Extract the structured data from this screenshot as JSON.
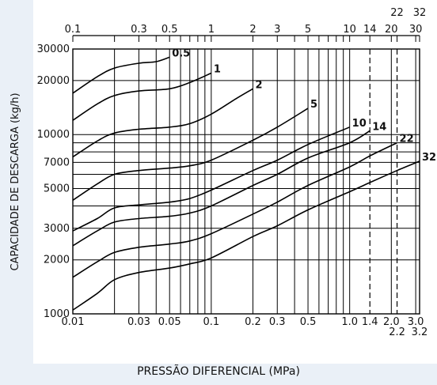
{
  "chart_data": {
    "type": "line",
    "xlabel": "PRESSÃO DIFERENCIAL (MPa)",
    "ylabel": "CAPACIDADE DE DESCARGA (kg/h)",
    "x_scale": "log",
    "y_scale": "log",
    "xlim_bottom": [
      0.01,
      3.2
    ],
    "ylim": [
      1000,
      30000
    ],
    "xlim_top": [
      0.1,
      32
    ],
    "y_ticks": [
      "1000",
      "2000",
      "3000",
      "5000",
      "7000",
      "10000",
      "20000",
      "30000"
    ],
    "x_ticks_bottom": [
      "0.01",
      "0.03",
      "0.05",
      "0.1",
      "0.2",
      "0.3",
      "0.5",
      "1.0",
      "1.4",
      "2.0",
      "3.0"
    ],
    "x_ticks_bottom_second_row": [
      "2.2",
      "3.2"
    ],
    "x_ticks_top": [
      "0.1",
      "0.3",
      "0.5",
      "1",
      "2",
      "3",
      "5",
      "10",
      "14",
      "20",
      "30"
    ],
    "x_ticks_top_second_row": [
      "22",
      "32"
    ],
    "dashed_vertical_lines": [
      1.4,
      2.2
    ],
    "grid": true,
    "series": [
      {
        "name": "0.5",
        "end_x": 0.05,
        "points": [
          [
            0.01,
            17000
          ],
          [
            0.015,
            21000
          ],
          [
            0.02,
            23500
          ],
          [
            0.03,
            25000
          ],
          [
            0.04,
            25500
          ],
          [
            0.05,
            27000
          ]
        ]
      },
      {
        "name": "1",
        "end_x": 0.1,
        "points": [
          [
            0.01,
            12000
          ],
          [
            0.015,
            14800
          ],
          [
            0.02,
            16500
          ],
          [
            0.03,
            17500
          ],
          [
            0.05,
            18000
          ],
          [
            0.07,
            19500
          ],
          [
            0.1,
            22000
          ]
        ]
      },
      {
        "name": "2",
        "end_x": 0.2,
        "points": [
          [
            0.01,
            7500
          ],
          [
            0.015,
            9200
          ],
          [
            0.02,
            10200
          ],
          [
            0.03,
            10700
          ],
          [
            0.05,
            11000
          ],
          [
            0.07,
            11500
          ],
          [
            0.1,
            13000
          ],
          [
            0.15,
            15800
          ],
          [
            0.2,
            18000
          ]
        ]
      },
      {
        "name": "5",
        "end_x": 0.5,
        "points": [
          [
            0.01,
            4300
          ],
          [
            0.015,
            5300
          ],
          [
            0.02,
            6000
          ],
          [
            0.03,
            6300
          ],
          [
            0.05,
            6500
          ],
          [
            0.07,
            6700
          ],
          [
            0.1,
            7200
          ],
          [
            0.2,
            9300
          ],
          [
            0.3,
            11000
          ],
          [
            0.5,
            14000
          ]
        ]
      },
      {
        "name": "10",
        "end_x": 1.0,
        "points": [
          [
            0.01,
            2900
          ],
          [
            0.015,
            3400
          ],
          [
            0.02,
            3900
          ],
          [
            0.03,
            4050
          ],
          [
            0.05,
            4200
          ],
          [
            0.07,
            4400
          ],
          [
            0.1,
            4900
          ],
          [
            0.2,
            6300
          ],
          [
            0.3,
            7200
          ],
          [
            0.5,
            8800
          ],
          [
            1.0,
            11000
          ]
        ]
      },
      {
        "name": "14",
        "end_x": 1.4,
        "points": [
          [
            0.01,
            2400
          ],
          [
            0.015,
            2900
          ],
          [
            0.02,
            3250
          ],
          [
            0.03,
            3400
          ],
          [
            0.05,
            3500
          ],
          [
            0.07,
            3650
          ],
          [
            0.1,
            4000
          ],
          [
            0.2,
            5200
          ],
          [
            0.3,
            6000
          ],
          [
            0.5,
            7400
          ],
          [
            1.0,
            9000
          ],
          [
            1.4,
            10500
          ]
        ]
      },
      {
        "name": "22",
        "end_x": 2.2,
        "points": [
          [
            0.01,
            1600
          ],
          [
            0.015,
            1950
          ],
          [
            0.02,
            2200
          ],
          [
            0.03,
            2350
          ],
          [
            0.05,
            2450
          ],
          [
            0.07,
            2550
          ],
          [
            0.1,
            2800
          ],
          [
            0.2,
            3600
          ],
          [
            0.3,
            4200
          ],
          [
            0.5,
            5200
          ],
          [
            1.0,
            6600
          ],
          [
            1.4,
            7600
          ],
          [
            2.2,
            9000
          ]
        ]
      },
      {
        "name": "32",
        "end_x": 3.2,
        "points": [
          [
            0.01,
            1050
          ],
          [
            0.015,
            1300
          ],
          [
            0.02,
            1550
          ],
          [
            0.03,
            1700
          ],
          [
            0.05,
            1800
          ],
          [
            0.07,
            1900
          ],
          [
            0.1,
            2050
          ],
          [
            0.2,
            2700
          ],
          [
            0.3,
            3100
          ],
          [
            0.5,
            3800
          ],
          [
            1.0,
            4800
          ],
          [
            1.4,
            5400
          ],
          [
            2.2,
            6300
          ],
          [
            3.2,
            7100
          ]
        ]
      }
    ]
  }
}
